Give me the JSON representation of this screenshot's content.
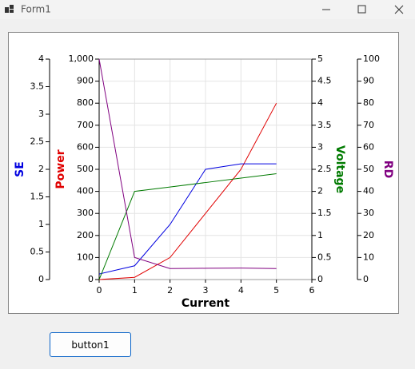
{
  "window": {
    "title": "Form1"
  },
  "button": {
    "label": "button1"
  },
  "chart_data": {
    "type": "line",
    "xlabel": "Current",
    "x": [
      0,
      1,
      2,
      3,
      4,
      5
    ],
    "xlim": [
      0,
      6
    ],
    "xticks": [
      0,
      1,
      2,
      3,
      4,
      5,
      6
    ],
    "ylabel": "Power",
    "ylim": [
      0,
      1000
    ],
    "yticks": [
      0,
      100,
      200,
      300,
      400,
      500,
      600,
      700,
      800,
      900,
      {
        "value": 1000,
        "label": "1,000"
      }
    ],
    "y2label": "Voltage",
    "y2lim": [
      0,
      5
    ],
    "y2ticks": [
      0,
      0.5,
      1,
      1.5,
      2,
      2.5,
      3,
      3.5,
      4,
      4.5,
      5
    ],
    "y3label": "SE",
    "y3lim": [
      0,
      4
    ],
    "y3ticks": [
      0,
      0.5,
      1,
      1.5,
      2,
      2.5,
      3,
      3.5,
      4
    ],
    "y4label": "RD",
    "y4lim": [
      0,
      100
    ],
    "y4ticks": [
      0,
      10,
      20,
      30,
      40,
      50,
      60,
      70,
      80,
      90,
      100
    ],
    "grid": true,
    "series": [
      {
        "name": "Power",
        "color": "#e00000",
        "axis": "y",
        "values": [
          0,
          10,
          100,
          300,
          500,
          800
        ]
      },
      {
        "name": "SE",
        "color": "#0000e0",
        "axis": "y3",
        "values": [
          0.1,
          0.25,
          1,
          2,
          2.1,
          2.1
        ]
      },
      {
        "name": "Voltage",
        "color": "#007a00",
        "axis": "y2",
        "values": [
          0,
          2,
          2.1,
          2.2,
          2.3,
          2.4
        ]
      },
      {
        "name": "RD",
        "color": "#800080",
        "axis": "y4",
        "values": [
          100,
          10,
          5,
          5.1,
          5.2,
          5
        ]
      }
    ]
  }
}
